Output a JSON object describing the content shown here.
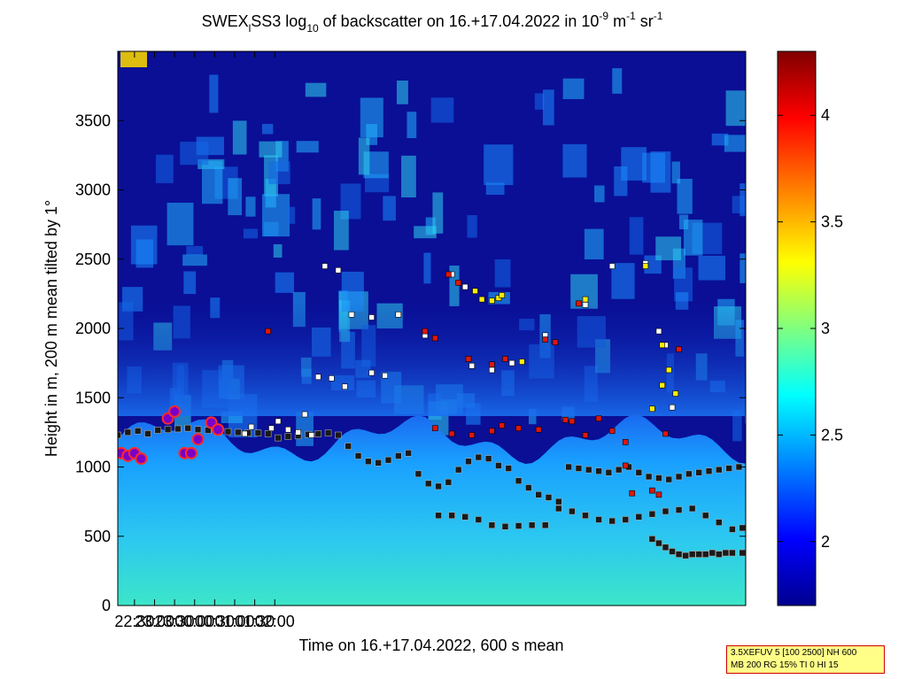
{
  "chart_data": {
    "type": "heatmap",
    "title": {
      "prefix": "SWEX",
      "sub1": "l",
      "mid": "SS3 log",
      "sub2": "10",
      "mid2": " of backscatter on 16.+17.04.2022 in 10",
      "sup1": "-9",
      "mid3": " m",
      "sup2": "-1",
      "mid4": " sr",
      "sup3": "-1"
    },
    "xlabel": "Time on 16.+17.04.2022, 600 s mean",
    "ylabel": "Height in m, 200 m mean tilted by 1°",
    "x_ticks": [
      "22:30",
      "23:00",
      "23:30",
      "00:00",
      "00:30",
      "01:00",
      "01:30",
      "02:00"
    ],
    "y_ticks": [
      "0",
      "500",
      "1000",
      "1500",
      "2000",
      "2500",
      "3000",
      "3500"
    ],
    "ylim": [
      0,
      4000
    ],
    "colorbar_ticks": [
      "2",
      "2.5",
      "3",
      "3.5",
      "4"
    ],
    "colorbar_range": [
      1.7,
      4.3
    ],
    "colormap": [
      "#00008f",
      "#0000ff",
      "#00ffff",
      "#ffff00",
      "#ff0000",
      "#800000"
    ],
    "background_color": "#0a0f96",
    "layers": {
      "boundary_low": [
        [
          0,
          1.0
        ],
        [
          20,
          0.9
        ],
        [
          40,
          0.75
        ],
        [
          60,
          0.6
        ],
        [
          80,
          0.45
        ],
        [
          100,
          0.35
        ]
      ],
      "dense_top": 1200,
      "plume_top": 2500
    },
    "series": [
      {
        "marker": "square-black",
        "x_min": [
          0,
          15,
          30,
          45,
          60,
          75,
          90,
          105,
          120,
          135,
          150,
          165,
          180,
          195,
          210,
          225,
          240,
          255,
          270,
          285,
          300,
          315,
          330,
          345,
          360,
          375,
          390,
          405,
          420,
          435,
          450,
          465,
          480,
          495,
          510,
          525,
          540,
          555,
          570,
          585,
          600,
          615,
          630,
          645,
          660,
          675,
          690,
          705,
          720,
          735,
          750,
          765,
          780,
          795,
          810,
          825,
          840,
          855,
          870,
          885,
          900,
          915,
          930
        ],
        "y_m": [
          1230,
          1250,
          1260,
          1240,
          1265,
          1270,
          1275,
          1280,
          1270,
          1265,
          1250,
          1255,
          1250,
          1245,
          1245,
          1240,
          1210,
          1220,
          1225,
          1235,
          1240,
          1245,
          1230,
          1150,
          1080,
          1040,
          1030,
          1050,
          1080,
          1100,
          950,
          880,
          860,
          890,
          980,
          1040,
          1070,
          1060,
          1010,
          990,
          900,
          850,
          800,
          780,
          750,
          1000,
          990,
          980,
          970,
          960,
          980,
          1000,
          960,
          930,
          920,
          910,
          930,
          950,
          960,
          970,
          980,
          990,
          1000
        ]
      },
      {
        "marker": "square-black",
        "x_min": [
          480,
          500,
          520,
          540,
          560,
          580,
          600,
          620,
          640,
          660,
          680,
          700,
          720,
          740,
          760,
          780,
          800,
          820,
          840,
          860,
          880,
          900,
          920,
          935
        ],
        "y_m": [
          650,
          650,
          640,
          620,
          580,
          570,
          575,
          580,
          580,
          700,
          680,
          650,
          620,
          610,
          620,
          640,
          660,
          680,
          690,
          700,
          650,
          600,
          550,
          560
        ]
      },
      {
        "marker": "square-black",
        "x_min": [
          800,
          810,
          820,
          830,
          840,
          850,
          860,
          870,
          880,
          890,
          900,
          910,
          920,
          935
        ],
        "y_m": [
          480,
          450,
          420,
          390,
          370,
          360,
          370,
          370,
          370,
          380,
          370,
          380,
          380,
          380
        ]
      }
    ],
    "scatter_groups": {
      "white_upper": [
        [
          310,
          2450
        ],
        [
          330,
          2420
        ],
        [
          350,
          2100
        ],
        [
          380,
          2080
        ],
        [
          420,
          2100
        ],
        [
          460,
          1950
        ],
        [
          500,
          2390
        ],
        [
          520,
          2300
        ],
        [
          530,
          1730
        ],
        [
          560,
          1700
        ],
        [
          590,
          1750
        ],
        [
          640,
          1950
        ],
        [
          700,
          2170
        ],
        [
          740,
          2450
        ],
        [
          790,
          2470
        ],
        [
          810,
          1980
        ],
        [
          820,
          1880
        ],
        [
          830,
          1430
        ],
        [
          300,
          1650
        ],
        [
          320,
          1640
        ],
        [
          340,
          1580
        ],
        [
          380,
          1680
        ],
        [
          400,
          1660
        ],
        [
          230,
          1280
        ],
        [
          255,
          1270
        ],
        [
          270,
          1250
        ],
        [
          290,
          1230
        ],
        [
          190,
          1240
        ],
        [
          200,
          1290
        ],
        [
          240,
          1330
        ],
        [
          280,
          1380
        ]
      ],
      "red_upper": [
        [
          225,
          1980
        ],
        [
          460,
          1980
        ],
        [
          475,
          1930
        ],
        [
          495,
          2390
        ],
        [
          510,
          2330
        ],
        [
          525,
          1780
        ],
        [
          560,
          1740
        ],
        [
          580,
          1780
        ],
        [
          640,
          1920
        ],
        [
          655,
          1900
        ],
        [
          690,
          2180
        ],
        [
          720,
          1350
        ],
        [
          740,
          1260
        ],
        [
          760,
          1180
        ],
        [
          820,
          1240
        ],
        [
          840,
          1850
        ],
        [
          475,
          1280
        ],
        [
          500,
          1240
        ],
        [
          530,
          1230
        ],
        [
          560,
          1260
        ],
        [
          575,
          1300
        ],
        [
          600,
          1280
        ],
        [
          630,
          1270
        ],
        [
          670,
          1340
        ],
        [
          680,
          1330
        ],
        [
          700,
          1230
        ],
        [
          760,
          1010
        ],
        [
          770,
          810
        ],
        [
          800,
          830
        ],
        [
          810,
          800
        ]
      ],
      "yellow_upper": [
        [
          535,
          2270
        ],
        [
          545,
          2210
        ],
        [
          560,
          2200
        ],
        [
          570,
          2220
        ],
        [
          575,
          2240
        ],
        [
          605,
          1760
        ],
        [
          700,
          2210
        ],
        [
          790,
          2450
        ],
        [
          815,
          1880
        ],
        [
          825,
          1700
        ],
        [
          835,
          1530
        ],
        [
          800,
          1420
        ],
        [
          815,
          1590
        ]
      ],
      "cloud_blobs": [
        [
          5,
          1100
        ],
        [
          15,
          1080
        ],
        [
          25,
          1100
        ],
        [
          35,
          1060
        ],
        [
          75,
          1350
        ],
        [
          85,
          1400
        ],
        [
          100,
          1100
        ],
        [
          110,
          1100
        ],
        [
          120,
          1200
        ],
        [
          140,
          1320
        ],
        [
          150,
          1270
        ]
      ]
    }
  },
  "info_box": {
    "line1": "3.5XEFUV 5 [100 2500] NH 600",
    "line2": "MB 200 RG 15% TI 0 HI 15"
  }
}
